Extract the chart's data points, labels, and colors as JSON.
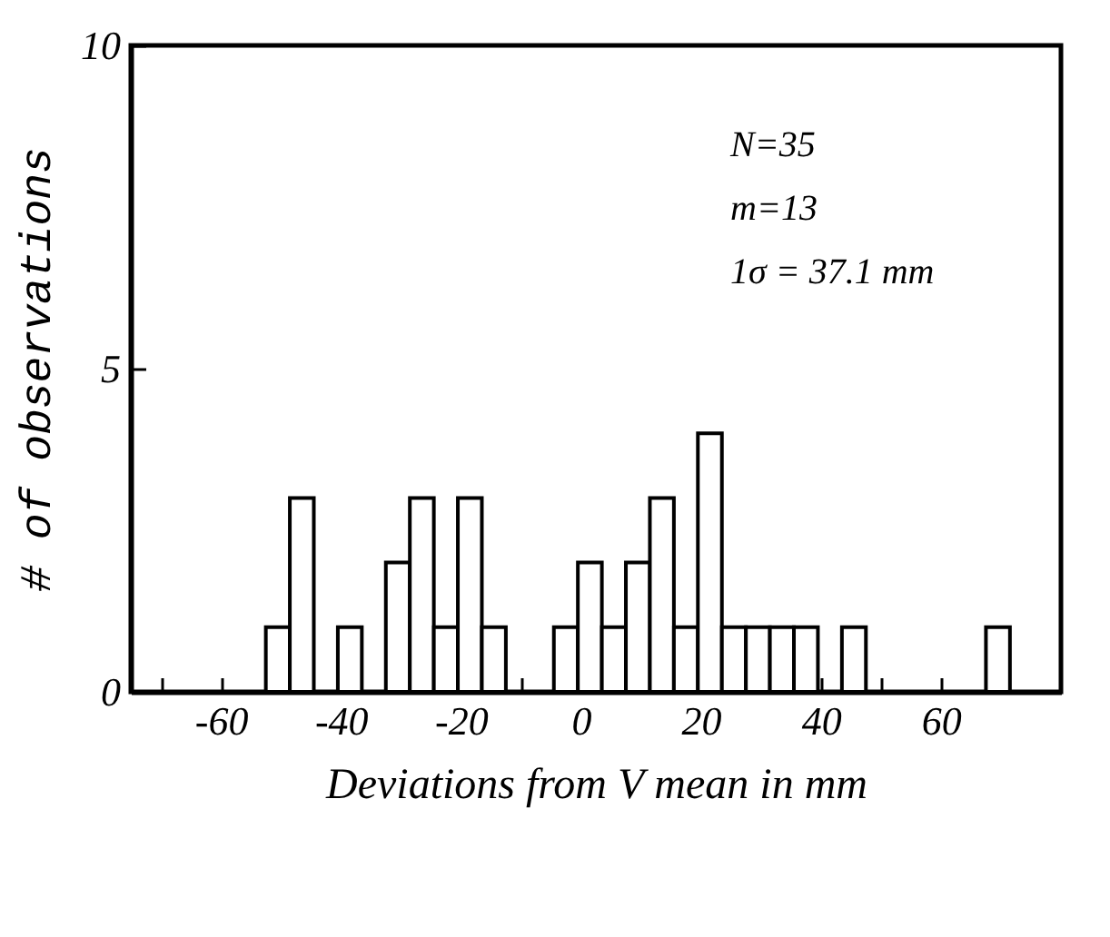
{
  "chart_data": {
    "type": "histogram",
    "xlabel": "Deviations from V mean in mm",
    "ylabel": "# of observations",
    "bins": [
      -52.5,
      -48.5,
      -44.5,
      -40.5,
      -36.5,
      -32.5,
      -28.5,
      -24.5,
      -20.5,
      -16.5,
      -12.5,
      -8.5,
      -4.5,
      -0.5,
      3.5,
      7.5,
      11.5,
      15.5,
      19.5,
      23.5,
      27.5,
      31.5,
      35.5,
      39.5,
      43.5,
      47.5,
      51.5,
      55.5,
      59.5,
      63.5,
      67.5,
      71.5
    ],
    "values": [
      1,
      3,
      0,
      1,
      0,
      2,
      3,
      1,
      3,
      1,
      0,
      0,
      1,
      2,
      1,
      2,
      3,
      1,
      4,
      1,
      1,
      1,
      1,
      0,
      1,
      0,
      0,
      0,
      0,
      0,
      1
    ],
    "color": "#ffffff",
    "xlim": [
      -75,
      80
    ],
    "xticks": [
      {
        "value": -70,
        "label": null
      },
      -60,
      {
        "value": -50,
        "label": null
      },
      -40,
      {
        "value": -30,
        "label": null
      },
      -20,
      {
        "value": -10,
        "label": null
      },
      0,
      {
        "value": 10,
        "label": null
      },
      20,
      {
        "value": 30,
        "label": null
      },
      40,
      {
        "value": 50,
        "label": null
      },
      60,
      {
        "value": 70,
        "label": null
      }
    ],
    "ylim": [
      0,
      10
    ],
    "yticks": [
      0,
      5,
      10
    ],
    "annotations": [
      "N=35",
      "m=13",
      "1σ = 37.1 mm"
    ]
  }
}
